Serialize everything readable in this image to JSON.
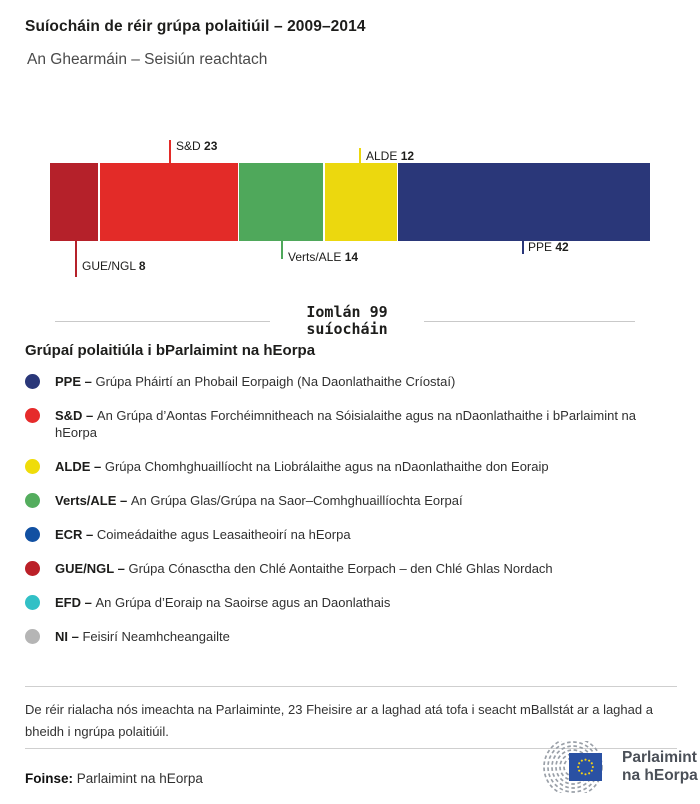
{
  "header": {
    "title": "Suíocháin de réir grúpa polaitiúil – 2009–2014",
    "subtitle": "An Ghearmáin – Seisiún reachtach"
  },
  "chart_data": {
    "type": "bar",
    "orientation": "horizontal-stacked",
    "title": "Suíocháin de réir grúpa polaitiúil – 2009–2014",
    "subtitle": "An Ghearmáin – Seisiún reachtach",
    "categories": [
      "GUE/NGL",
      "S&D",
      "Verts/ALE",
      "ALDE",
      "PPE"
    ],
    "values": [
      8,
      23,
      14,
      12,
      42
    ],
    "total_seats": 99,
    "groups": [
      {
        "id": "gue",
        "label": "GUE/NGL",
        "seats": 8,
        "color": "#b5212a",
        "callout": "below"
      },
      {
        "id": "sd",
        "label": "S&D",
        "seats": 23,
        "color": "#e32b28",
        "callout": "above"
      },
      {
        "id": "verts",
        "label": "Verts/ALE",
        "seats": 14,
        "color": "#4fa85b",
        "callout": "below"
      },
      {
        "id": "alde",
        "label": "ALDE",
        "seats": 12,
        "color": "#ecd80e",
        "callout": "above"
      },
      {
        "id": "ppe",
        "label": "PPE",
        "seats": 42,
        "color": "#2a3779",
        "callout": "below"
      }
    ]
  },
  "total": {
    "line1": "Iomlán 99",
    "line2": "suíocháin"
  },
  "legend": {
    "heading": "Grúpaí polaitiúla i bParlaimint na hEorpa",
    "dash": "–",
    "items": [
      {
        "id": "ppe",
        "name": "PPE",
        "color": "#2a3779",
        "desc": "Grúpa Pháirtí an Phobail Eorpaigh (Na Daonlathaithe Críostaí)"
      },
      {
        "id": "sd",
        "name": "S&D",
        "color": "#e62b2b",
        "desc": "An Grúpa d’Aontas Forchéimnitheach na Sóisialaithe agus na nDaonlathaithe i bParlaimint na hEorpa"
      },
      {
        "id": "alde",
        "name": "ALDE",
        "color": "#efdc0a",
        "desc": "Grúpa Chomhghuaillíocht na Liobrálaithe agus na nDaonlathaithe don Eoraip"
      },
      {
        "id": "verts",
        "name": "Verts/ALE",
        "color": "#54ad5e",
        "desc": "An Grúpa Glas/Grúpa na Saor–Comhghuaillíochta Eorpaí"
      },
      {
        "id": "ecr",
        "name": "ECR",
        "color": "#1150a2",
        "desc": "Coimeádaithe agus Leasaitheoirí na hEorpa"
      },
      {
        "id": "gue",
        "name": "GUE/NGL",
        "color": "#bb2028",
        "desc": "Grúpa Cónasctha den Chlé Aontaithe Eorpach – den Chlé Ghlas Nordach"
      },
      {
        "id": "efd",
        "name": "EFD",
        "color": "#32c0c6",
        "desc": "An Grúpa d’Eoraip na Saoirse agus an Daonlathais"
      },
      {
        "id": "ni",
        "name": "NI",
        "color": "#b5b5b5",
        "desc": "Feisirí Neamhcheangailte"
      }
    ]
  },
  "footer": {
    "note": "De réir rialacha nós imeachta na Parlaiminte, 23 Fheisire ar a laghad atá tofa i seacht mBallstát ar a laghad a bheidh i ngrúpa polaitiúil.",
    "source_label": "Foinse:",
    "source_value": " Parlaimint na hEorpa",
    "logo_line1": "Parlaimint",
    "logo_line2": "na hEorpa",
    "logo_flag_color": "#2a51a3",
    "logo_star_color": "#f6d216",
    "logo_arc_color": "#9aa0a8",
    "logo_text_color": "#4b5058"
  }
}
